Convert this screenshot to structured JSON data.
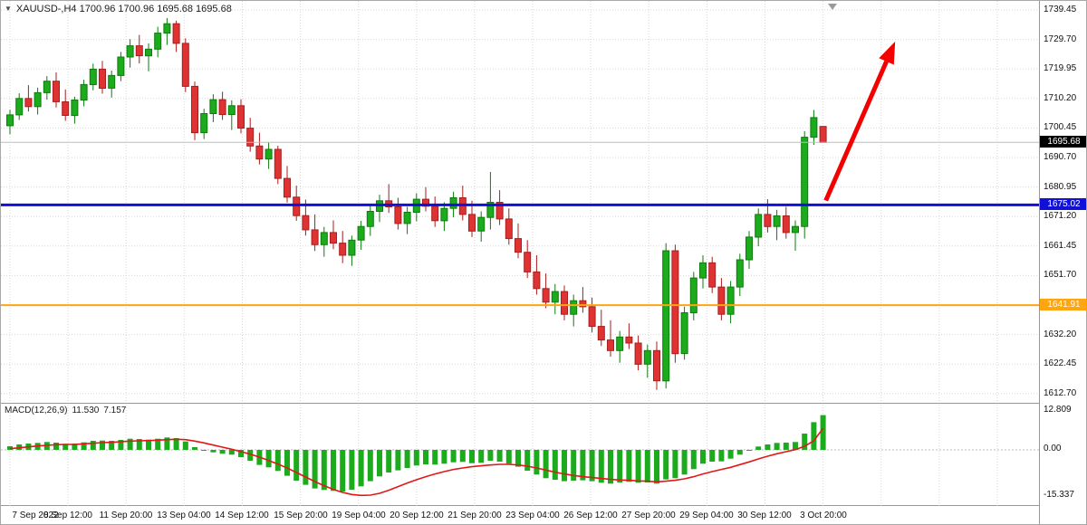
{
  "header": {
    "title": "XAUUSD-,H4 1700.96 1700.96 1695.68 1695.68"
  },
  "icons": {
    "dropdown_arrow": "▼"
  },
  "colors": {
    "grid": "#d8d8d8",
    "up_body": "#1cab1c",
    "up_border": "#0d7c0d",
    "down_body": "#df3232",
    "down_border": "#a81d1d",
    "macd_histogram": "#1cab1c",
    "macd_signal": "#e01818"
  },
  "chart_data": {
    "type": "candlestick",
    "title": "XAUUSD-,H4",
    "symbol": "XAUUSD-",
    "timeframe": "H4",
    "ohlc": {
      "open": "1700.96",
      "high": "1700.96",
      "low": "1695.68",
      "close": "1695.68"
    },
    "price_axis": {
      "step": 9.75,
      "labels": [
        "1739.45",
        "1729.70",
        "1719.95",
        "1710.20",
        "1700.45",
        "1690.70",
        "1680.95",
        "1671.20",
        "1661.45",
        "1651.70",
        "1641.95",
        "1632.20",
        "1622.45",
        "1612.70"
      ],
      "values": [
        1739.45,
        1729.7,
        1719.95,
        1710.2,
        1700.45,
        1690.7,
        1680.95,
        1671.2,
        1661.45,
        1651.7,
        1641.95,
        1632.2,
        1622.45,
        1612.7
      ]
    },
    "time_axis": {
      "labels": [
        "7 Sep 2022",
        "8 Sep 12:00",
        "11 Sep 20:00",
        "13 Sep 04:00",
        "14 Sep 12:00",
        "15 Sep 20:00",
        "19 Sep 04:00",
        "20 Sep 12:00",
        "21 Sep 20:00",
        "23 Sep 04:00",
        "26 Sep 12:00",
        "27 Sep 20:00",
        "29 Sep 04:00",
        "30 Sep 12:00",
        "3 Oct 20:00"
      ]
    },
    "candles": [
      [
        1701.2,
        1706.5,
        1698.4,
        1704.8
      ],
      [
        1704.8,
        1711.9,
        1703.1,
        1710.2
      ],
      [
        1710.2,
        1714.6,
        1705.9,
        1707.5
      ],
      [
        1707.5,
        1713.8,
        1704.9,
        1712.1
      ],
      [
        1712.1,
        1717.6,
        1709.8,
        1715.9
      ],
      [
        1715.9,
        1718.8,
        1707.2,
        1709.1
      ],
      [
        1709.1,
        1713.2,
        1702.8,
        1704.6
      ],
      [
        1704.6,
        1710.8,
        1701.9,
        1709.7
      ],
      [
        1709.7,
        1716.4,
        1707.6,
        1714.8
      ],
      [
        1714.8,
        1721.7,
        1712.9,
        1719.9
      ],
      [
        1719.9,
        1722.6,
        1711.8,
        1713.6
      ],
      [
        1713.6,
        1719.4,
        1710.5,
        1717.8
      ],
      [
        1717.8,
        1725.6,
        1715.9,
        1723.9
      ],
      [
        1723.9,
        1729.8,
        1720.4,
        1727.6
      ],
      [
        1727.6,
        1731.2,
        1721.8,
        1724.3
      ],
      [
        1724.3,
        1728.4,
        1719.2,
        1726.5
      ],
      [
        1726.5,
        1733.9,
        1723.8,
        1731.8
      ],
      [
        1731.8,
        1736.8,
        1727.9,
        1734.9
      ],
      [
        1734.9,
        1735.9,
        1725.6,
        1728.4
      ],
      [
        1728.4,
        1730.1,
        1712.3,
        1714.2
      ],
      [
        1714.2,
        1715.8,
        1696.4,
        1698.9
      ],
      [
        1698.9,
        1706.8,
        1696.8,
        1705.2
      ],
      [
        1705.2,
        1711.6,
        1702.4,
        1709.8
      ],
      [
        1709.8,
        1712.4,
        1703.1,
        1704.9
      ],
      [
        1704.9,
        1709.6,
        1699.8,
        1707.8
      ],
      [
        1707.8,
        1709.9,
        1698.7,
        1700.4
      ],
      [
        1700.4,
        1703.8,
        1692.6,
        1694.5
      ],
      [
        1694.5,
        1698.9,
        1688.4,
        1690.2
      ],
      [
        1690.2,
        1695.8,
        1686.9,
        1693.4
      ],
      [
        1693.4,
        1694.6,
        1681.9,
        1683.8
      ],
      [
        1683.8,
        1687.9,
        1675.8,
        1677.6
      ],
      [
        1677.6,
        1681.4,
        1669.8,
        1671.5
      ],
      [
        1671.5,
        1676.8,
        1664.9,
        1666.8
      ],
      [
        1666.8,
        1671.9,
        1659.8,
        1661.9
      ],
      [
        1661.9,
        1667.8,
        1657.9,
        1665.9
      ],
      [
        1665.9,
        1669.9,
        1660.4,
        1662.4
      ],
      [
        1662.4,
        1666.4,
        1655.8,
        1658.4
      ],
      [
        1658.4,
        1664.9,
        1654.9,
        1663.4
      ],
      [
        1663.4,
        1669.8,
        1660.2,
        1667.9
      ],
      [
        1667.9,
        1674.8,
        1664.8,
        1672.9
      ],
      [
        1672.9,
        1678.4,
        1669.4,
        1676.4
      ],
      [
        1676.4,
        1681.9,
        1672.4,
        1674.4
      ],
      [
        1674.4,
        1677.4,
        1666.9,
        1668.9
      ],
      [
        1668.9,
        1674.4,
        1665.4,
        1672.6
      ],
      [
        1672.6,
        1678.9,
        1669.6,
        1676.9
      ],
      [
        1676.9,
        1680.9,
        1672.9,
        1674.6
      ],
      [
        1674.6,
        1677.8,
        1667.8,
        1669.8
      ],
      [
        1669.8,
        1675.9,
        1666.4,
        1673.9
      ],
      [
        1673.9,
        1679.4,
        1670.9,
        1677.4
      ],
      [
        1677.4,
        1681.4,
        1669.9,
        1671.9
      ],
      [
        1671.9,
        1676.4,
        1664.4,
        1666.4
      ],
      [
        1666.4,
        1672.9,
        1662.9,
        1670.9
      ],
      [
        1670.9,
        1685.9,
        1666.9,
        1675.9
      ],
      [
        1675.9,
        1679.9,
        1668.4,
        1670.4
      ],
      [
        1670.4,
        1673.9,
        1661.9,
        1663.9
      ],
      [
        1663.9,
        1668.9,
        1657.4,
        1659.4
      ],
      [
        1659.4,
        1663.4,
        1650.9,
        1652.9
      ],
      [
        1652.9,
        1658.4,
        1645.4,
        1647.4
      ],
      [
        1647.4,
        1652.4,
        1640.9,
        1642.9
      ],
      [
        1642.9,
        1648.9,
        1638.9,
        1646.4
      ],
      [
        1646.4,
        1648.4,
        1636.9,
        1638.9
      ],
      [
        1638.9,
        1645.4,
        1634.9,
        1643.4
      ],
      [
        1643.4,
        1647.9,
        1639.4,
        1641.4
      ],
      [
        1641.4,
        1644.4,
        1632.9,
        1634.9
      ],
      [
        1634.9,
        1640.4,
        1628.4,
        1630.4
      ],
      [
        1630.4,
        1636.9,
        1624.9,
        1626.9
      ],
      [
        1626.9,
        1633.4,
        1622.9,
        1631.4
      ],
      [
        1631.4,
        1635.9,
        1627.4,
        1629.4
      ],
      [
        1629.4,
        1631.9,
        1620.4,
        1622.4
      ],
      [
        1622.4,
        1628.9,
        1617.9,
        1626.9
      ],
      [
        1626.9,
        1629.9,
        1613.9,
        1616.9
      ],
      [
        1616.9,
        1662.4,
        1614.4,
        1659.9
      ],
      [
        1659.9,
        1661.9,
        1622.9,
        1625.9
      ],
      [
        1625.9,
        1641.4,
        1623.9,
        1639.4
      ],
      [
        1639.4,
        1652.9,
        1636.9,
        1650.9
      ],
      [
        1650.9,
        1658.4,
        1647.4,
        1655.9
      ],
      [
        1655.9,
        1657.9,
        1645.9,
        1647.9
      ],
      [
        1647.9,
        1650.9,
        1636.9,
        1638.9
      ],
      [
        1638.9,
        1649.9,
        1635.9,
        1647.9
      ],
      [
        1647.9,
        1658.9,
        1644.9,
        1656.9
      ],
      [
        1656.9,
        1666.4,
        1653.9,
        1664.4
      ],
      [
        1664.4,
        1673.9,
        1661.4,
        1671.9
      ],
      [
        1671.9,
        1676.9,
        1665.9,
        1667.9
      ],
      [
        1667.9,
        1673.4,
        1663.4,
        1671.4
      ],
      [
        1671.4,
        1674.4,
        1663.9,
        1665.9
      ],
      [
        1665.9,
        1669.9,
        1659.9,
        1667.9
      ],
      [
        1667.9,
        1699.4,
        1663.9,
        1697.4
      ],
      [
        1697.4,
        1706.4,
        1694.9,
        1703.9
      ],
      [
        1700.96,
        1700.96,
        1695.68,
        1695.68
      ]
    ],
    "horizontal_lines": [
      {
        "name": "bid-price-line",
        "price": 1695.68,
        "label": "1695.68",
        "color": "#bdbdbd",
        "badge_bg": "#000000",
        "badge_fg": "#ffffff",
        "stroke_width": 1
      },
      {
        "name": "blue-level-line",
        "price": 1675.02,
        "label": "1675.02",
        "color": "#1010d8",
        "badge_bg": "#1010d8",
        "badge_fg": "#ffffff",
        "stroke_width": 3
      },
      {
        "name": "orange-level-line",
        "price": 1641.91,
        "label": "1641.91",
        "color": "#ffa510",
        "badge_bg": "#ffa510",
        "badge_fg": "#ffffff",
        "stroke_width": 2
      }
    ],
    "trend_arrow": {
      "from_bar": 88.3,
      "from_price": 1676.5,
      "to_bar": 95.8,
      "to_price": 1729.0,
      "color": "#f30000"
    },
    "indicator": {
      "type": "macd",
      "label": "MACD(12,26,9)",
      "values": {
        "main": "11.530",
        "signal": "7.157"
      },
      "axis_labels": [
        "12.809",
        "0.00",
        "-15.337"
      ],
      "axis_values": [
        12.809,
        0,
        -15.337
      ],
      "histogram": [
        1.2,
        1.8,
        2.1,
        2.3,
        2.6,
        2.4,
        2.0,
        2.1,
        2.5,
        3.0,
        3.1,
        3.0,
        3.3,
        3.7,
        3.6,
        3.4,
        3.7,
        4.1,
        3.9,
        2.8,
        0.9,
        -0.2,
        -0.8,
        -1.3,
        -1.6,
        -2.4,
        -3.6,
        -5.0,
        -5.8,
        -7.0,
        -8.6,
        -10.2,
        -11.6,
        -12.8,
        -13.3,
        -13.6,
        -13.8,
        -13.2,
        -12.1,
        -10.4,
        -8.8,
        -7.5,
        -6.8,
        -6.0,
        -5.2,
        -4.8,
        -4.9,
        -4.6,
        -4.1,
        -4.0,
        -4.4,
        -4.3,
        -3.6,
        -3.9,
        -4.6,
        -5.6,
        -6.9,
        -8.2,
        -9.4,
        -9.9,
        -10.4,
        -10.2,
        -10.1,
        -10.4,
        -10.9,
        -11.2,
        -10.8,
        -10.6,
        -10.9,
        -10.8,
        -11.2,
        -9.8,
        -9.4,
        -8.2,
        -6.4,
        -4.6,
        -3.9,
        -3.8,
        -2.9,
        -1.6,
        -0.2,
        1.1,
        1.8,
        2.3,
        2.4,
        2.6,
        5.4,
        9.2,
        11.53
      ],
      "signal": [
        0.4,
        0.7,
        1.0,
        1.3,
        1.5,
        1.7,
        1.8,
        1.8,
        2.0,
        2.2,
        2.4,
        2.5,
        2.7,
        2.9,
        3.0,
        3.1,
        3.2,
        3.4,
        3.5,
        3.4,
        2.9,
        2.3,
        1.6,
        0.9,
        0.2,
        -0.6,
        -1.4,
        -2.4,
        -3.5,
        -4.7,
        -6.0,
        -7.5,
        -9.0,
        -10.5,
        -11.9,
        -13.1,
        -14.1,
        -14.8,
        -15.1,
        -15.0,
        -14.4,
        -13.4,
        -12.2,
        -11.0,
        -9.9,
        -8.9,
        -8.0,
        -7.2,
        -6.5,
        -6.0,
        -5.6,
        -5.3,
        -5.0,
        -4.8,
        -4.8,
        -5.0,
        -5.4,
        -6.0,
        -6.7,
        -7.4,
        -8.0,
        -8.5,
        -8.9,
        -9.2,
        -9.5,
        -9.8,
        -10.0,
        -10.1,
        -10.3,
        -10.4,
        -10.6,
        -10.4,
        -10.1,
        -9.6,
        -8.9,
        -8.0,
        -7.2,
        -6.5,
        -5.8,
        -4.9,
        -4.0,
        -3.0,
        -2.1,
        -1.3,
        -0.6,
        0.1,
        1.2,
        3.0,
        7.157
      ]
    }
  }
}
